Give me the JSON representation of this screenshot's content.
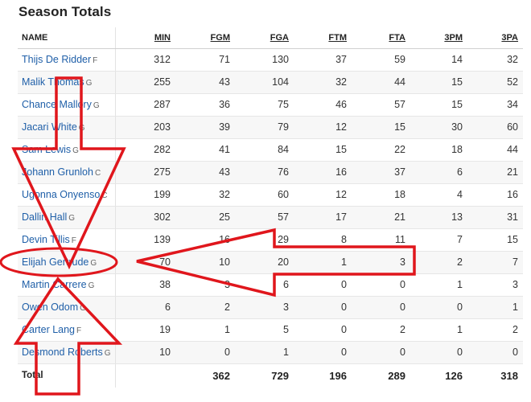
{
  "page": {
    "title": "Season Totals"
  },
  "table": {
    "headers": [
      "NAME",
      "MIN",
      "FGM",
      "FGA",
      "FTM",
      "FTA",
      "3PM",
      "3PA"
    ],
    "rows": [
      {
        "name": "Thijs De Ridder",
        "pos": "F",
        "stats": [
          "312",
          "71",
          "130",
          "37",
          "59",
          "14",
          "32"
        ]
      },
      {
        "name": "Malik Thomas",
        "pos": "G",
        "stats": [
          "255",
          "43",
          "104",
          "32",
          "44",
          "15",
          "52"
        ]
      },
      {
        "name": "Chance Mallory",
        "pos": "G",
        "stats": [
          "287",
          "36",
          "75",
          "46",
          "57",
          "15",
          "34"
        ]
      },
      {
        "name": "Jacari White",
        "pos": "G",
        "stats": [
          "203",
          "39",
          "79",
          "12",
          "15",
          "30",
          "60"
        ]
      },
      {
        "name": "Sam Lewis",
        "pos": "G",
        "stats": [
          "282",
          "41",
          "84",
          "15",
          "22",
          "18",
          "44"
        ]
      },
      {
        "name": "Johann Grunloh",
        "pos": "C",
        "stats": [
          "275",
          "43",
          "76",
          "16",
          "37",
          "6",
          "21"
        ]
      },
      {
        "name": "Ugonna Onyenso",
        "pos": "C",
        "stats": [
          "199",
          "32",
          "60",
          "12",
          "18",
          "4",
          "16"
        ]
      },
      {
        "name": "Dallin Hall",
        "pos": "G",
        "stats": [
          "302",
          "25",
          "57",
          "17",
          "21",
          "13",
          "31"
        ]
      },
      {
        "name": "Devin Tillis",
        "pos": "F",
        "stats": [
          "139",
          "16",
          "29",
          "8",
          "11",
          "7",
          "15"
        ]
      },
      {
        "name": "Elijah Gertrude",
        "pos": "G",
        "stats": [
          "70",
          "10",
          "20",
          "1",
          "3",
          "2",
          "7"
        ]
      },
      {
        "name": "Martin Carrere",
        "pos": "G",
        "stats": [
          "38",
          "3",
          "6",
          "0",
          "0",
          "1",
          "3"
        ]
      },
      {
        "name": "Owen Odom",
        "pos": "G",
        "stats": [
          "6",
          "2",
          "3",
          "0",
          "0",
          "0",
          "1"
        ]
      },
      {
        "name": "Carter Lang",
        "pos": "F",
        "stats": [
          "19",
          "1",
          "5",
          "0",
          "2",
          "1",
          "2"
        ]
      },
      {
        "name": "Desmond Roberts",
        "pos": "G",
        "stats": [
          "10",
          "0",
          "1",
          "0",
          "0",
          "0",
          "0"
        ]
      }
    ],
    "total": {
      "label": "Total",
      "stats": [
        "",
        "362",
        "729",
        "196",
        "289",
        "126",
        "318"
      ]
    }
  },
  "annotation": {
    "color": "#e0161c",
    "highlighted_player": "Elijah Gertrude"
  }
}
